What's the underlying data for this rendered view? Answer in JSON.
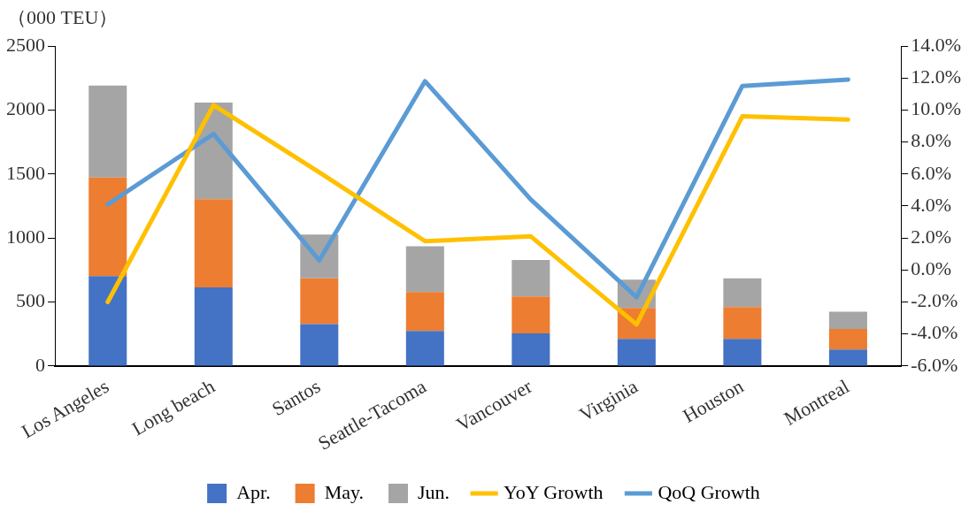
{
  "chart_data": {
    "type": "bar",
    "stacked": true,
    "ylabel": "（000 TEU）",
    "categories": [
      "Los Angeles",
      "Long beach",
      "Santos",
      "Seattle-Tacoma",
      "Vancouver",
      "Virginia",
      "Houston",
      "Montreal"
    ],
    "series": [
      {
        "name": "Apr.",
        "color": "#4472c4",
        "values": [
          702,
          614,
          327,
          273,
          255,
          211,
          211,
          129
        ]
      },
      {
        "name": "May.",
        "color": "#ed7d31",
        "values": [
          771,
          690,
          358,
          304,
          288,
          243,
          250,
          161
        ]
      },
      {
        "name": "Jun.",
        "color": "#a5a5a5",
        "values": [
          717,
          754,
          342,
          359,
          285,
          221,
          224,
          134
        ]
      },
      {
        "name": "YoY Growth",
        "type": "line",
        "axis": "y2",
        "color": "#ffc000",
        "values": [
          -2.0,
          10.3,
          6.1,
          1.8,
          2.1,
          -3.4,
          9.6,
          9.4
        ]
      },
      {
        "name": "QoQ Growth",
        "type": "line",
        "axis": "y2",
        "color": "#5b9bd5",
        "values": [
          4.1,
          8.5,
          0.6,
          11.8,
          4.4,
          -1.7,
          11.5,
          11.9
        ]
      }
    ],
    "ylim": [
      0,
      2500
    ],
    "yticks": [
      0,
      500,
      1000,
      1500,
      2000,
      2500
    ],
    "y2lim": [
      -6,
      14
    ],
    "y2ticks": [
      {
        "value": -6,
        "label": "-6.0%"
      },
      {
        "value": -4,
        "label": "-4.0%"
      },
      {
        "value": -2,
        "label": "-2.0%"
      },
      {
        "value": 0,
        "label": "0.0%"
      },
      {
        "value": 2,
        "label": "2.0%"
      },
      {
        "value": 4,
        "label": "4.0%"
      },
      {
        "value": 6,
        "label": "6.0%"
      },
      {
        "value": 8,
        "label": "8.0%"
      },
      {
        "value": 10,
        "label": "10.0%"
      },
      {
        "value": 12,
        "label": "12.0%"
      },
      {
        "value": 14,
        "label": "14.0%"
      }
    ],
    "grid": false,
    "legend": "bottom",
    "marker": "none"
  }
}
